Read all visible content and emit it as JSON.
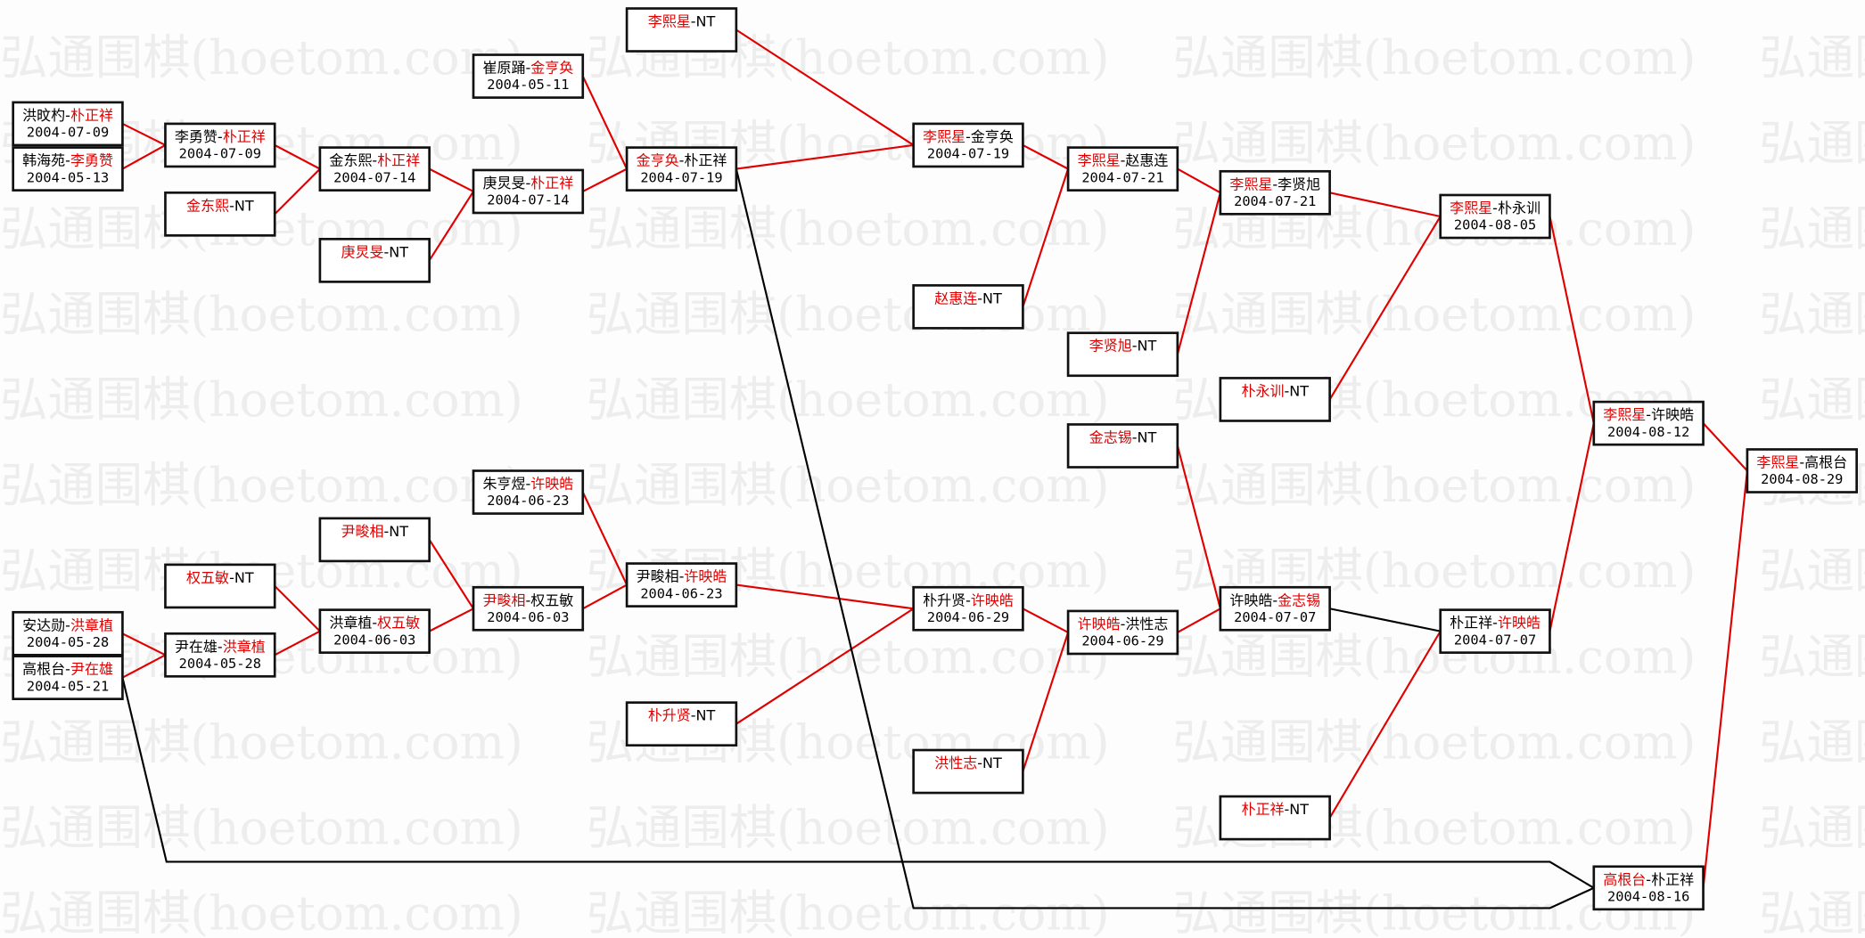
{
  "watermark": "弘通围棋(hoetom.com)",
  "colors": {
    "winner": "#e00000",
    "loser": "#000000",
    "advance_line": "#e00000",
    "loser_line": "#000000",
    "box_border": "#111111"
  },
  "matches": [
    {
      "id": "A1",
      "p1": "洪旼杓",
      "p2": "朴正祥",
      "winner": 2,
      "date": "2004-07-09"
    },
    {
      "id": "A2",
      "p1": "韩海苑",
      "p2": "李勇赞",
      "winner": 2,
      "date": "2004-05-13"
    },
    {
      "id": "A3",
      "p1": "安达勋",
      "p2": "洪章植",
      "winner": 2,
      "date": "2004-05-28"
    },
    {
      "id": "A4",
      "p1": "高根台",
      "p2": "尹在雄",
      "winner": 2,
      "date": "2004-05-21"
    },
    {
      "id": "B1",
      "p1": "李勇赞",
      "p2": "朴正祥",
      "winner": 2,
      "date": "2004-07-09"
    },
    {
      "id": "B2",
      "p1": "金东熙",
      "p2": "NT",
      "winner": 1,
      "date": ""
    },
    {
      "id": "B3",
      "p1": "权五敏",
      "p2": "NT",
      "winner": 1,
      "date": ""
    },
    {
      "id": "B4",
      "p1": "尹在雄",
      "p2": "洪章植",
      "winner": 2,
      "date": "2004-05-28"
    },
    {
      "id": "C1",
      "p1": "金东熙",
      "p2": "朴正祥",
      "winner": 2,
      "date": "2004-07-14"
    },
    {
      "id": "C2",
      "p1": "庚炅旻",
      "p2": "NT",
      "winner": 1,
      "date": ""
    },
    {
      "id": "C3",
      "p1": "尹畯相",
      "p2": "NT",
      "winner": 1,
      "date": ""
    },
    {
      "id": "C4",
      "p1": "洪章植",
      "p2": "权五敏",
      "winner": 2,
      "date": "2004-06-03"
    },
    {
      "id": "D1",
      "p1": "崔原踊",
      "p2": "金亨奂",
      "winner": 2,
      "date": "2004-05-11"
    },
    {
      "id": "D2",
      "p1": "庚炅旻",
      "p2": "朴正祥",
      "winner": 2,
      "date": "2004-07-14"
    },
    {
      "id": "D3",
      "p1": "朱亨煜",
      "p2": "许映皓",
      "winner": 2,
      "date": "2004-06-23"
    },
    {
      "id": "D4",
      "p1": "尹畯相",
      "p2": "权五敏",
      "winner": 1,
      "date": "2004-06-03"
    },
    {
      "id": "E1",
      "p1": "李熙星",
      "p2": "NT",
      "winner": 1,
      "date": ""
    },
    {
      "id": "E2",
      "p1": "金亨奂",
      "p2": "朴正祥",
      "winner": 1,
      "date": "2004-07-19"
    },
    {
      "id": "E3",
      "p1": "尹畯相",
      "p2": "许映皓",
      "winner": 2,
      "date": "2004-06-23"
    },
    {
      "id": "E4",
      "p1": "朴升贤",
      "p2": "NT",
      "winner": 1,
      "date": ""
    },
    {
      "id": "F1",
      "p1": "李熙星",
      "p2": "金亨奂",
      "winner": 1,
      "date": "2004-07-19"
    },
    {
      "id": "F2",
      "p1": "赵惠连",
      "p2": "NT",
      "winner": 1,
      "date": ""
    },
    {
      "id": "F3",
      "p1": "朴升贤",
      "p2": "许映皓",
      "winner": 2,
      "date": "2004-06-29"
    },
    {
      "id": "F4",
      "p1": "洪性志",
      "p2": "NT",
      "winner": 1,
      "date": ""
    },
    {
      "id": "G1",
      "p1": "李熙星",
      "p2": "赵惠连",
      "winner": 1,
      "date": "2004-07-21"
    },
    {
      "id": "G2",
      "p1": "李贤旭",
      "p2": "NT",
      "winner": 1,
      "date": ""
    },
    {
      "id": "G3",
      "p1": "金志锡",
      "p2": "NT",
      "winner": 1,
      "date": ""
    },
    {
      "id": "G4",
      "p1": "许映皓",
      "p2": "洪性志",
      "winner": 1,
      "date": "2004-06-29"
    },
    {
      "id": "H1",
      "p1": "李熙星",
      "p2": "李贤旭",
      "winner": 1,
      "date": "2004-07-21"
    },
    {
      "id": "H2",
      "p1": "朴永训",
      "p2": "NT",
      "winner": 1,
      "date": ""
    },
    {
      "id": "H3",
      "p1": "许映皓",
      "p2": "金志锡",
      "winner": 2,
      "date": "2004-07-07"
    },
    {
      "id": "H4",
      "p1": "朴正祥",
      "p2": "NT",
      "winner": 1,
      "date": ""
    },
    {
      "id": "I1",
      "p1": "李熙星",
      "p2": "朴永训",
      "winner": 1,
      "date": "2004-08-05"
    },
    {
      "id": "I2",
      "p1": "朴正祥",
      "p2": "许映皓",
      "winner": 2,
      "date": "2004-07-07"
    },
    {
      "id": "J1",
      "p1": "李熙星",
      "p2": "许映皓",
      "winner": 1,
      "date": "2004-08-12"
    },
    {
      "id": "J2",
      "p1": "高根台",
      "p2": "朴正祥",
      "winner": 1,
      "date": "2004-08-16"
    },
    {
      "id": "K1",
      "p1": "李熙星",
      "p2": "高根台",
      "winner": 1,
      "date": "2004-08-29"
    }
  ],
  "edges": [
    {
      "from": "A1",
      "to": "B1",
      "type": "advance"
    },
    {
      "from": "A2",
      "to": "B1",
      "type": "advance"
    },
    {
      "from": "B1",
      "to": "C1",
      "type": "advance"
    },
    {
      "from": "B2",
      "to": "C1",
      "type": "advance"
    },
    {
      "from": "C1",
      "to": "D2",
      "type": "advance"
    },
    {
      "from": "C2",
      "to": "D2",
      "type": "advance"
    },
    {
      "from": "D1",
      "to": "E2",
      "type": "advance"
    },
    {
      "from": "D2",
      "to": "E2",
      "type": "advance"
    },
    {
      "from": "E1",
      "to": "F1",
      "type": "advance"
    },
    {
      "from": "E2",
      "to": "F1",
      "type": "advance"
    },
    {
      "from": "F1",
      "to": "G1",
      "type": "advance"
    },
    {
      "from": "F2",
      "to": "G1",
      "type": "advance"
    },
    {
      "from": "G1",
      "to": "H1",
      "type": "advance"
    },
    {
      "from": "G2",
      "to": "H1",
      "type": "advance"
    },
    {
      "from": "H1",
      "to": "I1",
      "type": "advance"
    },
    {
      "from": "H2",
      "to": "I1",
      "type": "advance"
    },
    {
      "from": "I1",
      "to": "J1",
      "type": "advance"
    },
    {
      "from": "I2",
      "to": "J1",
      "type": "advance"
    },
    {
      "from": "J1",
      "to": "K1",
      "type": "advance"
    },
    {
      "from": "J2",
      "to": "K1",
      "type": "advance"
    },
    {
      "from": "A3",
      "to": "B4",
      "type": "advance"
    },
    {
      "from": "A4",
      "to": "B4",
      "type": "advance"
    },
    {
      "from": "B3",
      "to": "C4",
      "type": "advance"
    },
    {
      "from": "B4",
      "to": "C4",
      "type": "advance"
    },
    {
      "from": "C3",
      "to": "D4",
      "type": "advance"
    },
    {
      "from": "C4",
      "to": "D4",
      "type": "advance"
    },
    {
      "from": "D3",
      "to": "E3",
      "type": "advance"
    },
    {
      "from": "D4",
      "to": "E3",
      "type": "advance"
    },
    {
      "from": "E3",
      "to": "F3",
      "type": "advance"
    },
    {
      "from": "E4",
      "to": "F3",
      "type": "advance"
    },
    {
      "from": "F3",
      "to": "G4",
      "type": "advance"
    },
    {
      "from": "F4",
      "to": "G4",
      "type": "advance"
    },
    {
      "from": "G3",
      "to": "H3",
      "type": "advance"
    },
    {
      "from": "G4",
      "to": "H3",
      "type": "advance"
    },
    {
      "from": "H3",
      "to": "I2",
      "type": "loser"
    },
    {
      "from": "H4",
      "to": "I2",
      "type": "advance"
    },
    {
      "from": "A4",
      "to": "J2",
      "type": "loser"
    },
    {
      "from": "E2",
      "to": "J2",
      "type": "loser"
    }
  ]
}
